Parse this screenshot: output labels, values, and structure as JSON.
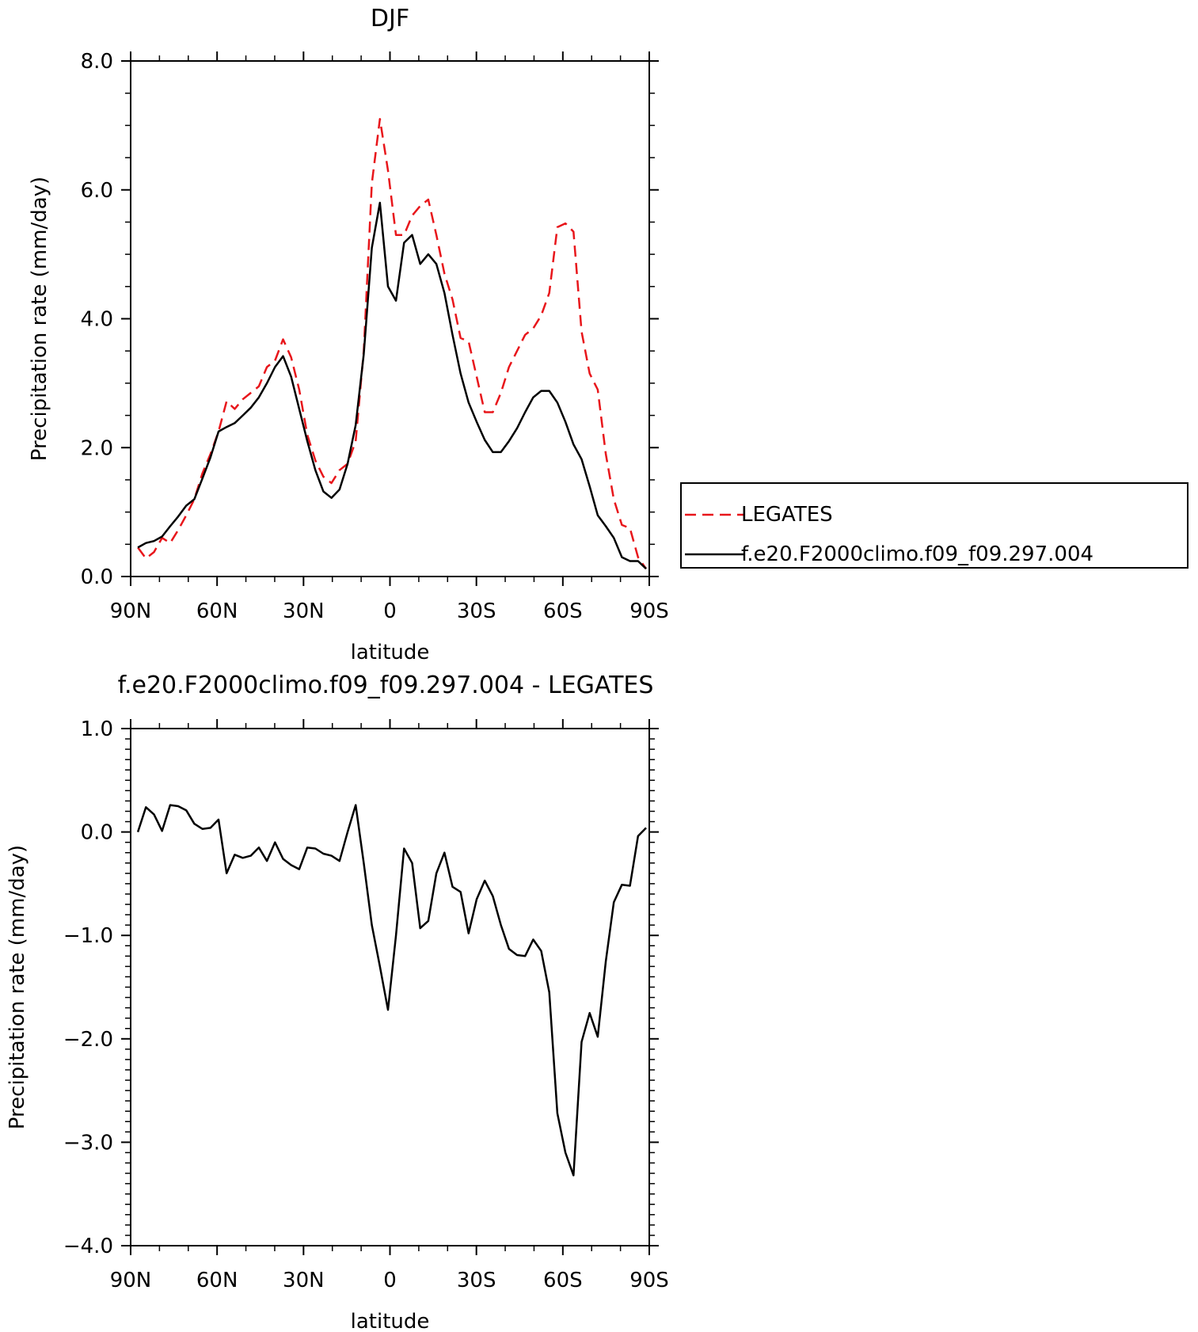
{
  "chart_data": [
    {
      "type": "line",
      "title": "DJF",
      "xlabel": "latitude",
      "ylabel": "Precipitation rate (mm/day)",
      "xlim": [
        90,
        -90
      ],
      "ylim": [
        0,
        8
      ],
      "xticks": [
        90,
        60,
        30,
        0,
        -30,
        -60,
        -90
      ],
      "xtick_labels": [
        "90N",
        "60N",
        "30N",
        "0",
        "30S",
        "60S",
        "90S"
      ],
      "yticks": [
        0,
        2,
        4,
        6,
        8
      ],
      "ytick_labels": [
        "0.0",
        "2.0",
        "4.0",
        "6.0",
        "8.0"
      ],
      "legend": "outside-right",
      "series": [
        {
          "name": "LEGATES",
          "color": "#e8161b",
          "dash": "dashed",
          "x": [
            87.5,
            84.7,
            81.9,
            79.1,
            76.3,
            73.5,
            70.7,
            67.9,
            65.1,
            62.3,
            59.5,
            56.7,
            53.9,
            51.1,
            48.3,
            45.5,
            42.7,
            39.9,
            37.1,
            34.3,
            31.5,
            28.7,
            25.9,
            23.1,
            20.3,
            17.5,
            14.7,
            11.9,
            9.1,
            6.3,
            3.5,
            0.7,
            -2.1,
            -4.9,
            -7.7,
            -10.5,
            -13.3,
            -16.1,
            -18.9,
            -21.7,
            -24.5,
            -27.3,
            -30.1,
            -32.9,
            -35.7,
            -38.5,
            -41.3,
            -44.1,
            -46.9,
            -49.7,
            -52.5,
            -55.3,
            -58.1,
            -60.9,
            -63.7,
            -66.5,
            -69.3,
            -72.1,
            -74.9,
            -77.7,
            -80.5,
            -83.3,
            -86.1,
            -88.9
          ],
          "y": [
            0.45,
            0.28,
            0.38,
            0.6,
            0.52,
            0.72,
            0.95,
            1.2,
            1.6,
            1.9,
            2.25,
            2.72,
            2.6,
            2.75,
            2.85,
            2.95,
            3.25,
            3.35,
            3.68,
            3.4,
            2.9,
            2.2,
            1.8,
            1.55,
            1.45,
            1.65,
            1.75,
            2.1,
            3.5,
            6.1,
            7.1,
            6.3,
            5.3,
            5.3,
            5.6,
            5.75,
            5.85,
            5.3,
            4.7,
            4.3,
            3.7,
            3.65,
            3.1,
            2.55,
            2.55,
            2.85,
            3.25,
            3.5,
            3.75,
            3.85,
            4.05,
            4.4,
            5.42,
            5.48,
            5.35,
            3.8,
            3.15,
            2.9,
            1.9,
            1.2,
            0.8,
            0.75,
            0.3,
            0.12
          ]
        },
        {
          "name": "f.e20.F2000climo.f09_f09.297.004",
          "color": "#000000",
          "dash": "solid",
          "x": [
            87.5,
            84.7,
            81.9,
            79.1,
            76.3,
            73.5,
            70.7,
            67.9,
            65.1,
            62.3,
            59.5,
            56.7,
            53.9,
            51.1,
            48.3,
            45.5,
            42.7,
            39.9,
            37.1,
            34.3,
            31.5,
            28.7,
            25.9,
            23.1,
            20.3,
            17.5,
            14.7,
            11.9,
            9.1,
            6.3,
            3.5,
            0.7,
            -2.1,
            -4.9,
            -7.7,
            -10.5,
            -13.3,
            -16.1,
            -18.9,
            -21.7,
            -24.5,
            -27.3,
            -30.1,
            -32.9,
            -35.7,
            -38.5,
            -41.3,
            -44.1,
            -46.9,
            -49.7,
            -52.5,
            -55.3,
            -58.1,
            -60.9,
            -63.7,
            -66.5,
            -69.3,
            -72.1,
            -74.9,
            -77.7,
            -80.5,
            -83.3,
            -86.1,
            -88.9
          ],
          "y": [
            0.45,
            0.52,
            0.55,
            0.62,
            0.78,
            0.93,
            1.1,
            1.2,
            1.52,
            1.85,
            2.25,
            2.32,
            2.38,
            2.5,
            2.62,
            2.78,
            3.0,
            3.25,
            3.42,
            3.1,
            2.6,
            2.1,
            1.65,
            1.32,
            1.22,
            1.35,
            1.75,
            2.35,
            3.45,
            5.1,
            5.8,
            4.5,
            4.28,
            5.18,
            5.3,
            4.85,
            5.0,
            4.85,
            4.4,
            3.75,
            3.15,
            2.7,
            2.4,
            2.12,
            1.93,
            1.93,
            2.1,
            2.3,
            2.55,
            2.78,
            2.88,
            2.88,
            2.7,
            2.4,
            2.05,
            1.82,
            1.4,
            0.95,
            0.78,
            0.6,
            0.3,
            0.24,
            0.24,
            0.12
          ]
        }
      ]
    },
    {
      "type": "line",
      "title": "f.e20.F2000climo.f09_f09.297.004 - LEGATES",
      "xlabel": "latitude",
      "ylabel": "Precipitation rate (mm/day)",
      "xlim": [
        90,
        -90
      ],
      "ylim": [
        -4,
        1
      ],
      "xticks": [
        90,
        60,
        30,
        0,
        -30,
        -60,
        -90
      ],
      "xtick_labels": [
        "90N",
        "60N",
        "30N",
        "0",
        "30S",
        "60S",
        "90S"
      ],
      "yticks": [
        -4,
        -3,
        -2,
        -1,
        0,
        1
      ],
      "ytick_labels": [
        "−4.0",
        "−3.0",
        "−2.0",
        "−1.0",
        "0.0",
        "1.0"
      ],
      "series": [
        {
          "color": "#000000",
          "dash": "solid",
          "x": [
            87.5,
            84.7,
            81.9,
            79.1,
            76.3,
            73.5,
            70.7,
            67.9,
            65.1,
            62.3,
            59.5,
            56.7,
            53.9,
            51.1,
            48.3,
            45.5,
            42.7,
            39.9,
            37.1,
            34.3,
            31.5,
            28.7,
            25.9,
            23.1,
            20.3,
            17.5,
            14.7,
            11.9,
            9.1,
            6.3,
            3.5,
            0.7,
            -2.1,
            -4.9,
            -7.7,
            -10.5,
            -13.3,
            -16.1,
            -18.9,
            -21.7,
            -24.5,
            -27.3,
            -30.1,
            -32.9,
            -35.7,
            -38.5,
            -41.3,
            -44.1,
            -46.9,
            -49.7,
            -52.5,
            -55.3,
            -58.1,
            -60.9,
            -63.7,
            -66.5,
            -69.3,
            -72.1,
            -74.9,
            -77.7,
            -80.5,
            -83.3,
            -86.1,
            -88.9
          ],
          "y": [
            0.0,
            0.24,
            0.17,
            0.01,
            0.26,
            0.25,
            0.21,
            0.08,
            0.03,
            0.04,
            0.12,
            -0.4,
            -0.22,
            -0.25,
            -0.23,
            -0.15,
            -0.28,
            -0.1,
            -0.26,
            -0.32,
            -0.36,
            -0.15,
            -0.16,
            -0.21,
            -0.23,
            -0.28,
            0.0,
            0.26,
            -0.3,
            -0.9,
            -1.3,
            -1.72,
            -1.0,
            -0.16,
            -0.3,
            -0.93,
            -0.86,
            -0.4,
            -0.2,
            -0.53,
            -0.58,
            -0.98,
            -0.65,
            -0.47,
            -0.62,
            -0.9,
            -1.13,
            -1.19,
            -1.2,
            -1.04,
            -1.15,
            -1.55,
            -2.72,
            -3.1,
            -3.32,
            -2.03,
            -1.75,
            -1.98,
            -1.25,
            -0.68,
            -0.51,
            -0.52,
            -0.04,
            0.04
          ]
        }
      ]
    }
  ]
}
